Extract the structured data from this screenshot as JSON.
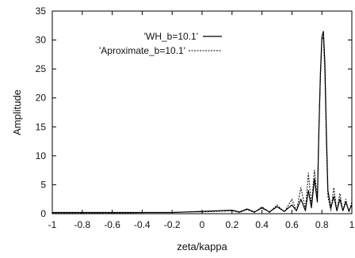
{
  "chart_data": {
    "type": "line",
    "title": "",
    "xlabel": "zeta/kappa",
    "ylabel": "Amplitude",
    "xlim": [
      -1,
      1
    ],
    "ylim": [
      0,
      35
    ],
    "x_ticks": [
      "-1",
      "-0.8",
      "-0.6",
      "-0.4",
      "-0.2",
      "0",
      "0.2",
      "0.4",
      "0.6",
      "0.8",
      "1"
    ],
    "y_ticks": [
      "0",
      "5",
      "10",
      "15",
      "20",
      "25",
      "30",
      "35"
    ],
    "grid": false,
    "legend": "top-right",
    "series": [
      {
        "name": "'WH_b=10.1'",
        "style": "solid",
        "color": "#000000",
        "x": [
          -1.0,
          -0.9,
          -0.8,
          -0.7,
          -0.6,
          -0.5,
          -0.4,
          -0.3,
          -0.2,
          -0.1,
          0.0,
          0.1,
          0.2,
          0.25,
          0.3,
          0.35,
          0.4,
          0.45,
          0.5,
          0.55,
          0.6,
          0.63,
          0.66,
          0.69,
          0.71,
          0.73,
          0.75,
          0.77,
          0.78,
          0.79,
          0.8,
          0.81,
          0.82,
          0.83,
          0.84,
          0.86,
          0.88,
          0.9,
          0.92,
          0.94,
          0.96,
          0.98,
          1.0
        ],
        "y": [
          0.2,
          0.2,
          0.2,
          0.2,
          0.2,
          0.2,
          0.2,
          0.2,
          0.2,
          0.3,
          0.4,
          0.5,
          0.6,
          0.3,
          0.8,
          0.3,
          1.0,
          0.3,
          1.2,
          0.4,
          1.5,
          0.5,
          2.5,
          0.5,
          4.0,
          1.0,
          6.0,
          2.0,
          14.0,
          24.0,
          30.5,
          31.5,
          26.0,
          14.0,
          4.0,
          1.0,
          3.0,
          0.5,
          2.5,
          0.5,
          2.0,
          0.5,
          1.5
        ]
      },
      {
        "name": "'Aproximate_b=10.1'",
        "style": "dashed",
        "color": "#000000",
        "x": [
          -1.0,
          -0.9,
          -0.8,
          -0.7,
          -0.6,
          -0.5,
          -0.4,
          -0.3,
          -0.2,
          -0.1,
          0.0,
          0.1,
          0.2,
          0.25,
          0.3,
          0.35,
          0.4,
          0.45,
          0.5,
          0.55,
          0.6,
          0.63,
          0.66,
          0.69,
          0.71,
          0.73,
          0.75,
          0.77,
          0.78,
          0.79,
          0.8,
          0.81,
          0.82,
          0.83,
          0.84,
          0.86,
          0.88,
          0.9,
          0.92,
          0.94,
          0.96,
          0.98,
          1.0
        ],
        "y": [
          0.1,
          0.1,
          0.1,
          0.1,
          0.1,
          0.1,
          0.2,
          0.2,
          0.2,
          0.3,
          0.3,
          0.4,
          0.5,
          0.2,
          0.7,
          0.2,
          1.2,
          0.2,
          1.5,
          0.3,
          2.5,
          0.4,
          4.5,
          0.8,
          7.0,
          1.5,
          7.5,
          2.5,
          15.0,
          23.0,
          30.0,
          30.5,
          24.0,
          12.0,
          3.0,
          0.5,
          4.5,
          0.5,
          3.5,
          0.5,
          2.5,
          0.3,
          2.0
        ]
      }
    ]
  }
}
